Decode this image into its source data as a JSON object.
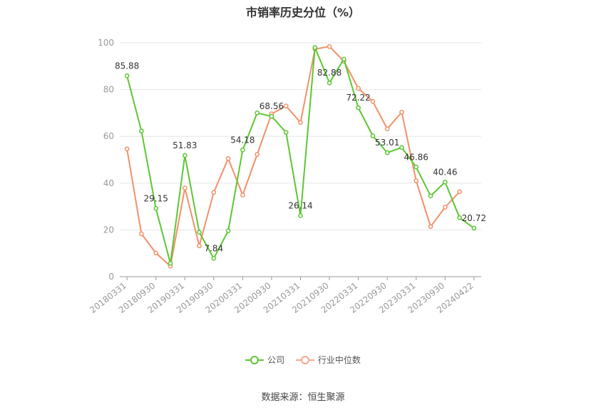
{
  "chart_data": {
    "type": "line",
    "title": "市销率历史分位（%）",
    "xlabel": "",
    "ylabel": "",
    "ylim": [
      0,
      100
    ],
    "yticks": [
      0,
      20,
      40,
      60,
      80,
      100
    ],
    "grid": true,
    "legend_position": "bottom",
    "x": [
      "20180331",
      "20180630",
      "20180930",
      "20181231",
      "20190331",
      "20190630",
      "20190930",
      "20191231",
      "20200331",
      "20200630",
      "20200930",
      "20201231",
      "20210331",
      "20210630",
      "20210930",
      "20211231",
      "20220331",
      "20220630",
      "20220930",
      "20221231",
      "20230331",
      "20230630",
      "20230930",
      "20231231",
      "20240422"
    ],
    "xtick_labels": [
      "20180331",
      "20180930",
      "20190331",
      "20190930",
      "20200331",
      "20200930",
      "20210331",
      "20210930",
      "20220331",
      "20220930",
      "20230331",
      "20230930",
      "20240422"
    ],
    "series": [
      {
        "name": "公司",
        "color": "#5cc731",
        "values": [
          85.88,
          62.3,
          29.15,
          5.7,
          51.83,
          19.0,
          7.84,
          19.6,
          54.18,
          70.0,
          68.56,
          61.7,
          26.14,
          98.0,
          82.88,
          93.0,
          72.22,
          60.2,
          53.01,
          55.2,
          46.86,
          34.5,
          40.46,
          25.2,
          20.72
        ]
      },
      {
        "name": "行业中位数",
        "color": "#f39069",
        "values": [
          54.6,
          18.3,
          10.1,
          4.5,
          37.9,
          13.2,
          36.0,
          50.5,
          34.9,
          52.3,
          69.6,
          73.0,
          65.9,
          97.3,
          98.4,
          92.1,
          80.5,
          74.9,
          63.2,
          70.3,
          41.0,
          21.4,
          29.7,
          36.3,
          null
        ]
      }
    ],
    "data_labels": [
      {
        "index": 0,
        "text": "85.88"
      },
      {
        "index": 2,
        "text": "29.15"
      },
      {
        "index": 4,
        "text": "51.83"
      },
      {
        "index": 6,
        "text": "7.84"
      },
      {
        "index": 8,
        "text": "54.18"
      },
      {
        "index": 10,
        "text": "68.56"
      },
      {
        "index": 12,
        "text": "26.14"
      },
      {
        "index": 14,
        "text": "82.88"
      },
      {
        "index": 16,
        "text": "72.22"
      },
      {
        "index": 18,
        "text": "53.01"
      },
      {
        "index": 20,
        "text": "46.86"
      },
      {
        "index": 22,
        "text": "40.46"
      },
      {
        "index": 24,
        "text": "20.72"
      }
    ]
  },
  "legend": {
    "company_label": "公司",
    "industry_label": "行业中位数"
  },
  "source": "数据来源：恒生聚源"
}
